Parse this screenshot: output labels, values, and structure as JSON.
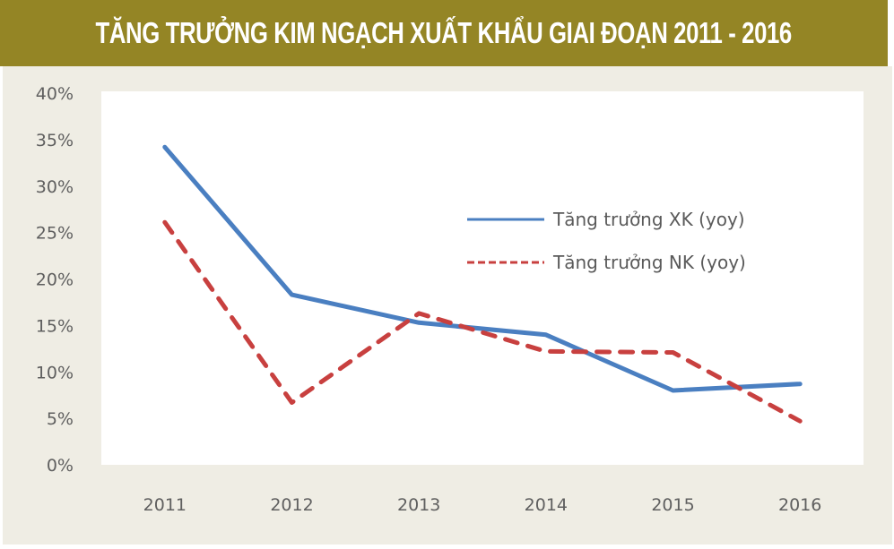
{
  "header": {
    "title": "TĂNG TRƯỞNG KIM NGẠCH XUẤT KHẨU GIAI ĐOẠN 2011 - 2016"
  },
  "colors": {
    "header_bg": "#948525",
    "panel_bg": "#efede4",
    "plot_bg": "#ffffff",
    "export_line": "#4a7fc1",
    "import_line": "#c8403f",
    "tick_text": "#5f5f5f"
  },
  "chart_data": {
    "type": "line",
    "title": "TĂNG TRƯỞNG KIM NGẠCH XUẤT KHẨU GIAI ĐOẠN 2011 - 2016",
    "xlabel": "",
    "ylabel": "",
    "categories": [
      "2011",
      "2012",
      "2013",
      "2014",
      "2015",
      "2016"
    ],
    "y_ticks": [
      "0%",
      "5%",
      "10%",
      "15%",
      "20%",
      "25%",
      "30%",
      "35%",
      "40%"
    ],
    "ylim": [
      0,
      40
    ],
    "grid": false,
    "legend_position": "upper-right-inside",
    "series": [
      {
        "name": "Tăng trưởng XK (yoy)",
        "style": "solid",
        "color": "#4a7fc1",
        "values": [
          34.2,
          18.3,
          15.3,
          14.0,
          8.0,
          8.7
        ]
      },
      {
        "name": "Tăng trưởng NK (yoy)",
        "style": "dashed",
        "color": "#c8403f",
        "values": [
          26.1,
          6.7,
          16.3,
          12.2,
          12.1,
          4.7
        ]
      }
    ]
  }
}
